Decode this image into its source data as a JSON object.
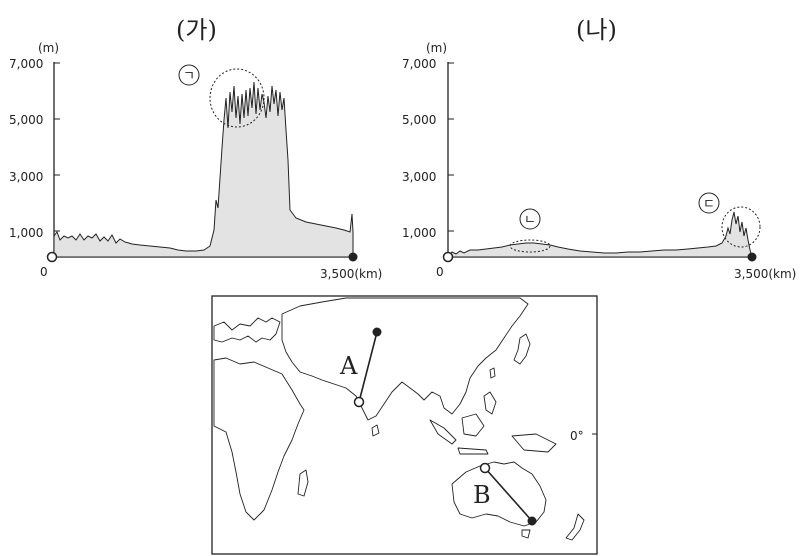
{
  "figure": {
    "left_title": "(가)",
    "right_title": "(나)",
    "unit_m": "(m)",
    "y_ticks": [
      "7,000",
      "5,000",
      "3,000",
      "1,000"
    ],
    "x_start": "0",
    "x_end": "3,500(km)",
    "marker_a": "ㄱ",
    "marker_b": "ㄴ",
    "marker_c": "ㄷ"
  },
  "map": {
    "route_a": "A",
    "route_b": "B",
    "equator_label": "0°"
  },
  "colors": {
    "fill": "#e3e3e3",
    "line": "#222222"
  }
}
